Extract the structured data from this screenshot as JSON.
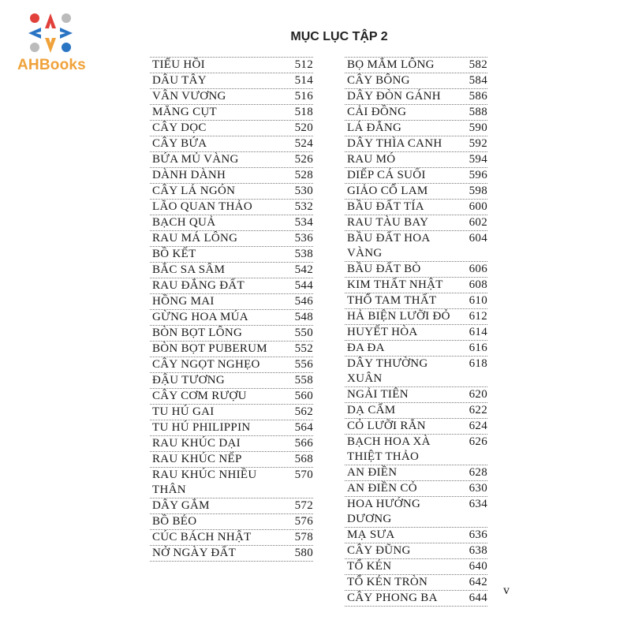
{
  "logo": {
    "text": "AHBooks",
    "colors": [
      "#e2403a",
      "#f0a23a",
      "#2a74c4",
      "#bbbbbb"
    ]
  },
  "title": "MỤC LỤC TẬP 2",
  "left_column": [
    {
      "name": "TIỂU HỒI",
      "page": "512"
    },
    {
      "name": "DÂU TÂY",
      "page": "514"
    },
    {
      "name": "VÂN VƯƠNG",
      "page": "516"
    },
    {
      "name": "MĂNG CỤT",
      "page": "518"
    },
    {
      "name": "CÂY DỌC",
      "page": "520"
    },
    {
      "name": "CÂY BỨA",
      "page": "524"
    },
    {
      "name": "BỨA MỦ VÀNG",
      "page": "526"
    },
    {
      "name": "DÀNH DÀNH",
      "page": "528"
    },
    {
      "name": "CÂY LÁ NGÓN",
      "page": "530"
    },
    {
      "name": "LÃO QUAN THẢO",
      "page": "532"
    },
    {
      "name": "BẠCH QUẢ",
      "page": "534"
    },
    {
      "name": "RAU MÁ LÔNG",
      "page": "536"
    },
    {
      "name": "BỒ KẾT",
      "page": "538"
    },
    {
      "name": "BẮC SA SÂM",
      "page": "542"
    },
    {
      "name": "RAU ĐẮNG ĐẤT",
      "page": "544"
    },
    {
      "name": "HỒNG MAI",
      "page": "546"
    },
    {
      "name": "GỪNG HOA MÚA",
      "page": "548"
    },
    {
      "name": "BÒN BỌT LÔNG",
      "page": "550"
    },
    {
      "name": "BÒN BỌT PUBERUM",
      "page": "552"
    },
    {
      "name": "CÂY NGỌT NGHẸO",
      "page": "556"
    },
    {
      "name": "ĐẬU TƯƠNG",
      "page": "558"
    },
    {
      "name": "CÂY CƠM RƯỢU",
      "page": "560"
    },
    {
      "name": "TU HÚ GAI",
      "page": "562"
    },
    {
      "name": "TU HÚ PHILIPPIN",
      "page": "564"
    },
    {
      "name": "RAU KHÚC DẠI",
      "page": "566"
    },
    {
      "name": "RAU KHÚC NẾP",
      "page": "568"
    },
    {
      "name": "RAU KHÚC NHIỀU THÂN",
      "page": "570"
    },
    {
      "name": "DÂY GẮM",
      "page": "572"
    },
    {
      "name": "BỒ BÉO",
      "page": "576"
    },
    {
      "name": "CÚC BÁCH NHẬT",
      "page": "578"
    },
    {
      "name": "NỞ NGÀY ĐẤT",
      "page": "580"
    }
  ],
  "right_column": [
    {
      "name": "BỌ MẮM LÔNG",
      "page": "582"
    },
    {
      "name": "CÂY BÔNG",
      "page": "584"
    },
    {
      "name": "DÂY ĐÒN GÁNH",
      "page": "586"
    },
    {
      "name": "CẢI ĐỒNG",
      "page": "588"
    },
    {
      "name": "LÁ ĐẮNG",
      "page": "590"
    },
    {
      "name": "DÂY THÌA CANH",
      "page": "592"
    },
    {
      "name": "RAU MÓ",
      "page": "594"
    },
    {
      "name": "DIẾP CÁ SUỐI",
      "page": "596"
    },
    {
      "name": "GIẢO CỔ LAM",
      "page": "598"
    },
    {
      "name": "BẦU ĐẤT TÍA",
      "page": "600"
    },
    {
      "name": "RAU TÀU BAY",
      "page": "602"
    },
    {
      "name": "BẦU ĐẤT HOA VÀNG",
      "page": "604"
    },
    {
      "name": "BẦU ĐẤT BÒ",
      "page": "606"
    },
    {
      "name": "KIM THẤT NHẬT",
      "page": "608"
    },
    {
      "name": "THỔ TAM THẤT",
      "page": "610"
    },
    {
      "name": "HẢ BIỆN LƯỠI ĐỎ",
      "page": "612"
    },
    {
      "name": "HUYẾT HÒA",
      "page": "614"
    },
    {
      "name": "ĐA ĐA",
      "page": "616"
    },
    {
      "name": "DÂY THƯỜNG XUÂN",
      "page": "618"
    },
    {
      "name": "NGẢI TIÊN",
      "page": "620"
    },
    {
      "name": "DẠ CẨM",
      "page": "622"
    },
    {
      "name": "CỎ LƯỠI RẮN",
      "page": "624"
    },
    {
      "name": "BẠCH HOA XÀ THIỆT THẢO",
      "page": "626"
    },
    {
      "name": "AN ĐIỀN",
      "page": "628"
    },
    {
      "name": "AN ĐIỀN CỎ",
      "page": "630"
    },
    {
      "name": "HOA HƯỚNG DƯƠNG",
      "page": "634"
    },
    {
      "name": "MẠ SƯA",
      "page": "636"
    },
    {
      "name": "CÂY ĐŨNG",
      "page": "638"
    },
    {
      "name": "TỔ KÉN",
      "page": "640"
    },
    {
      "name": "TỔ KÉN TRÒN",
      "page": "642"
    },
    {
      "name": "CÂY PHONG BA",
      "page": "644"
    }
  ],
  "page_number": "v"
}
